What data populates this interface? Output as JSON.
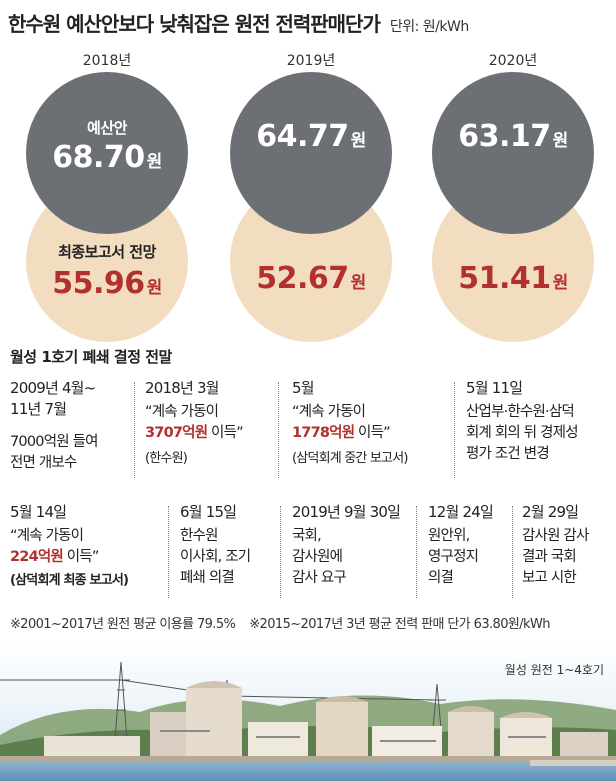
{
  "title": "한수원 예산안보다 낮춰잡은 원전 전력판매단가",
  "unit": "단위: 원/kWh",
  "years": [
    {
      "year": "2018년",
      "budget_label": "예산안",
      "budget_value": "68.70",
      "final_label": "최종보고서 전망",
      "final_value": "55.96",
      "won": "원"
    },
    {
      "year": "2019년",
      "budget_label": "",
      "budget_value": "64.77",
      "final_label": "",
      "final_value": "52.67",
      "won": "원"
    },
    {
      "year": "2020년",
      "budget_label": "",
      "budget_value": "63.17",
      "final_label": "",
      "final_value": "51.41",
      "won": "원"
    }
  ],
  "timeline_title": "월성 1호기 폐쇄 결정 전말",
  "timeline": {
    "e1": {
      "date": "2009년 4월~",
      "date2": "11년 7월",
      "line1": "7000억원 들여",
      "line2": "전면 개보수"
    },
    "e2": {
      "date": "2018년 3월",
      "pre": "“계속 가동이",
      "red": "3707억원",
      "post": " 이득”",
      "note": "(한수원)"
    },
    "e3": {
      "date": "5월",
      "pre": "“계속 가동이",
      "red": "1778억원",
      "post": " 이득”",
      "note": "(삼덕회계 중간 보고서)"
    },
    "e4": {
      "date": "5월 11일",
      "line1": "산업부·한수원·삼덕",
      "line2": "회계 회의 뒤 경제성",
      "line3": "평가 조건 변경"
    },
    "e5": {
      "date": "5월 14일",
      "pre": "“계속 가동이",
      "red": "224억원",
      "post": " 이득”",
      "note": "(삼덕회계 최종 보고서)"
    },
    "e6": {
      "date": "6월 15일",
      "line1": "한수원",
      "line2": "이사회, 조기",
      "line3": "폐쇄 의결"
    },
    "e7": {
      "date": "2019년 9월 30일",
      "line1": "국회,",
      "line2": "감사원에",
      "line3": "감사 요구"
    },
    "e8": {
      "date": "12월 24일",
      "line1": "원안위,",
      "line2": "영구정지",
      "line3": "의결"
    },
    "e9": {
      "date": "2월 29일",
      "line1": "감사원 감사",
      "line2": "결과 국회",
      "line3": "보고 시한"
    }
  },
  "notes": {
    "n1": "※2001~2017년 원전 평균 이용률 79.5%",
    "n2": "※2015~2017년 3년 평균 전력 판매 단가 63.80원/kWh"
  },
  "photo_caption": "월성 원전 1~4호기",
  "colors": {
    "budget_circle": "#6c7074",
    "final_circle": "#f3ddc1",
    "highlight_red": "#b3312d"
  }
}
